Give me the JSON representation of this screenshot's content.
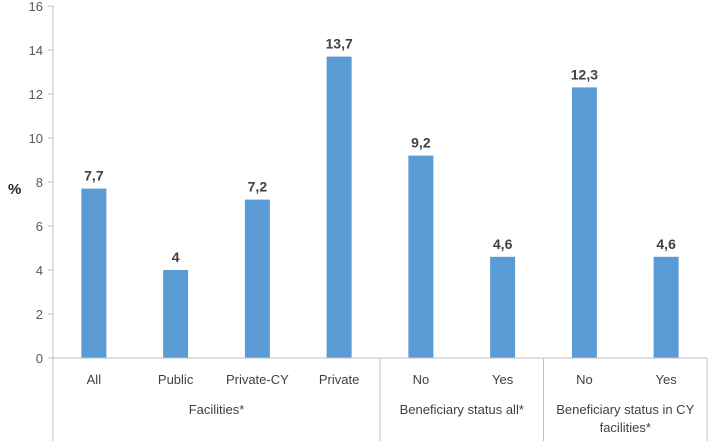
{
  "chart_data": {
    "type": "bar",
    "ylabel": "%",
    "ylim": [
      0,
      16
    ],
    "yticks": [
      0,
      2,
      4,
      6,
      8,
      10,
      12,
      14,
      16
    ],
    "grid": false,
    "legend": "none",
    "bar_color": "#5b9bd5",
    "categories": [
      "All",
      "Public",
      "Private-CY",
      "Private",
      "No",
      "Yes",
      "No",
      "Yes"
    ],
    "values": [
      7.7,
      4,
      7.2,
      13.7,
      9.2,
      4.6,
      12.3,
      4.6
    ],
    "data_labels": [
      "7,7",
      "4",
      "7,2",
      "13,7",
      "9,2",
      "4,6",
      "12,3",
      "4,6"
    ],
    "groups": [
      {
        "label": "Facilities*",
        "count": 4
      },
      {
        "label": "Beneficiary status all*",
        "count": 2
      },
      {
        "label": "Beneficiary status in CY facilities*",
        "count": 2
      }
    ]
  }
}
